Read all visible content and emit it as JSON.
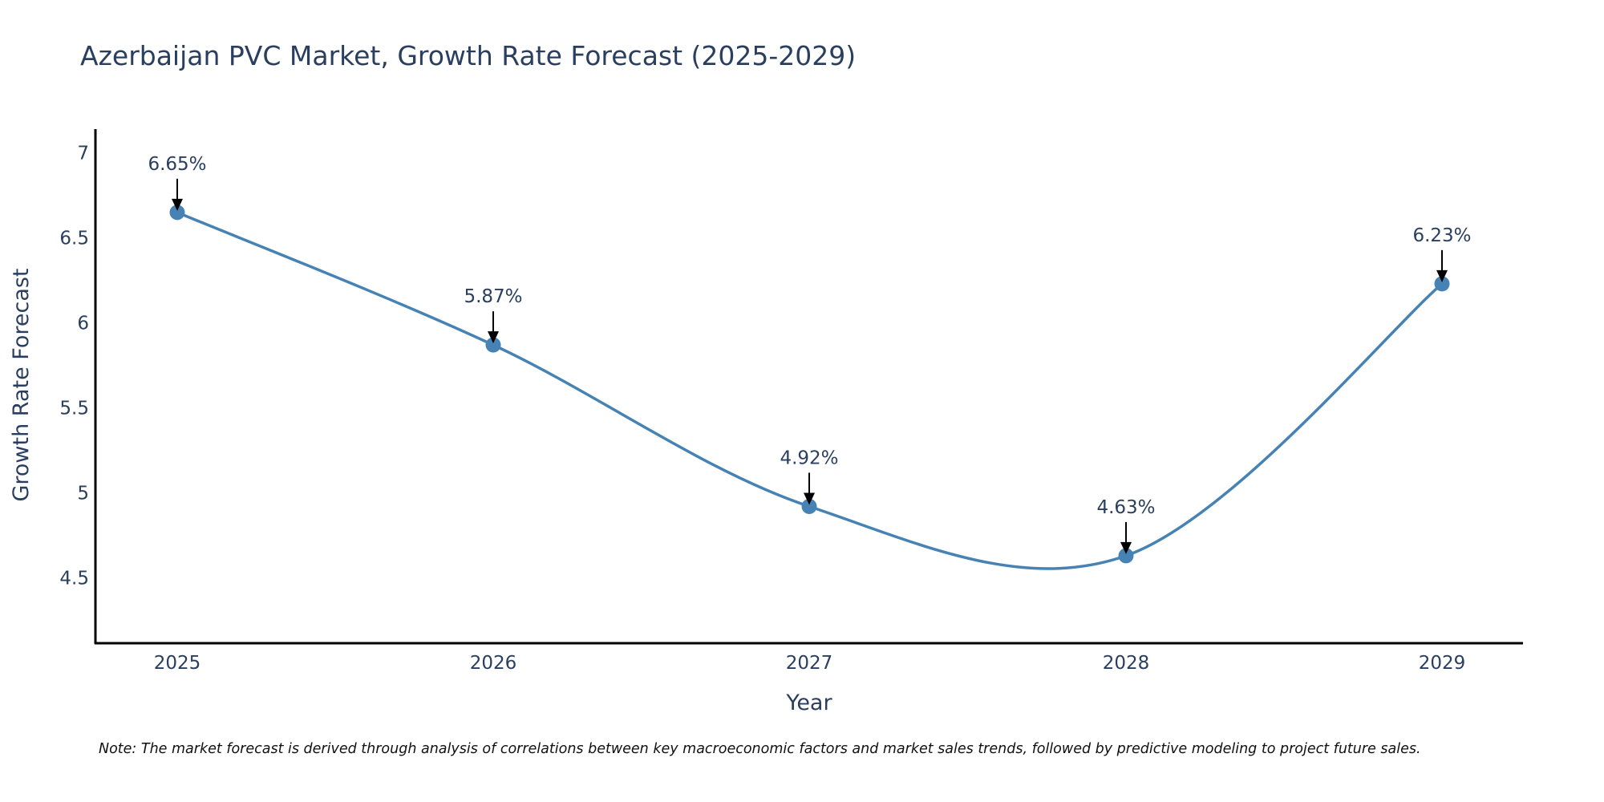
{
  "chart_data": {
    "type": "line",
    "title": "Azerbaijan PVC Market, Growth Rate Forecast (2025-2029)",
    "xlabel": "Year",
    "ylabel": "Growth Rate Forecast",
    "categories": [
      "2025",
      "2026",
      "2027",
      "2028",
      "2029"
    ],
    "series": [
      {
        "name": "Growth Rate Forecast",
        "values": [
          6.65,
          5.87,
          4.92,
          4.63,
          6.23
        ],
        "labels": [
          "6.65%",
          "5.87%",
          "4.92%",
          "4.63%",
          "6.23%"
        ]
      }
    ],
    "ylim": [
      4.12,
      7.14
    ],
    "yticks": [
      4.5,
      5,
      5.5,
      6,
      6.5,
      7
    ],
    "ytick_labels": [
      "4.5",
      "5",
      "5.5",
      "6",
      "6.5",
      "7"
    ],
    "line_color": "#4682b4",
    "marker_color": "#4682b4",
    "axis_color": "#000000",
    "text_color": "#2a3f5f",
    "grid": false,
    "line_shape": "spline",
    "note": "Note: The market forecast is derived through analysis of correlations between key macroeconomic factors and market sales trends, followed by predictive modeling to project future sales."
  }
}
